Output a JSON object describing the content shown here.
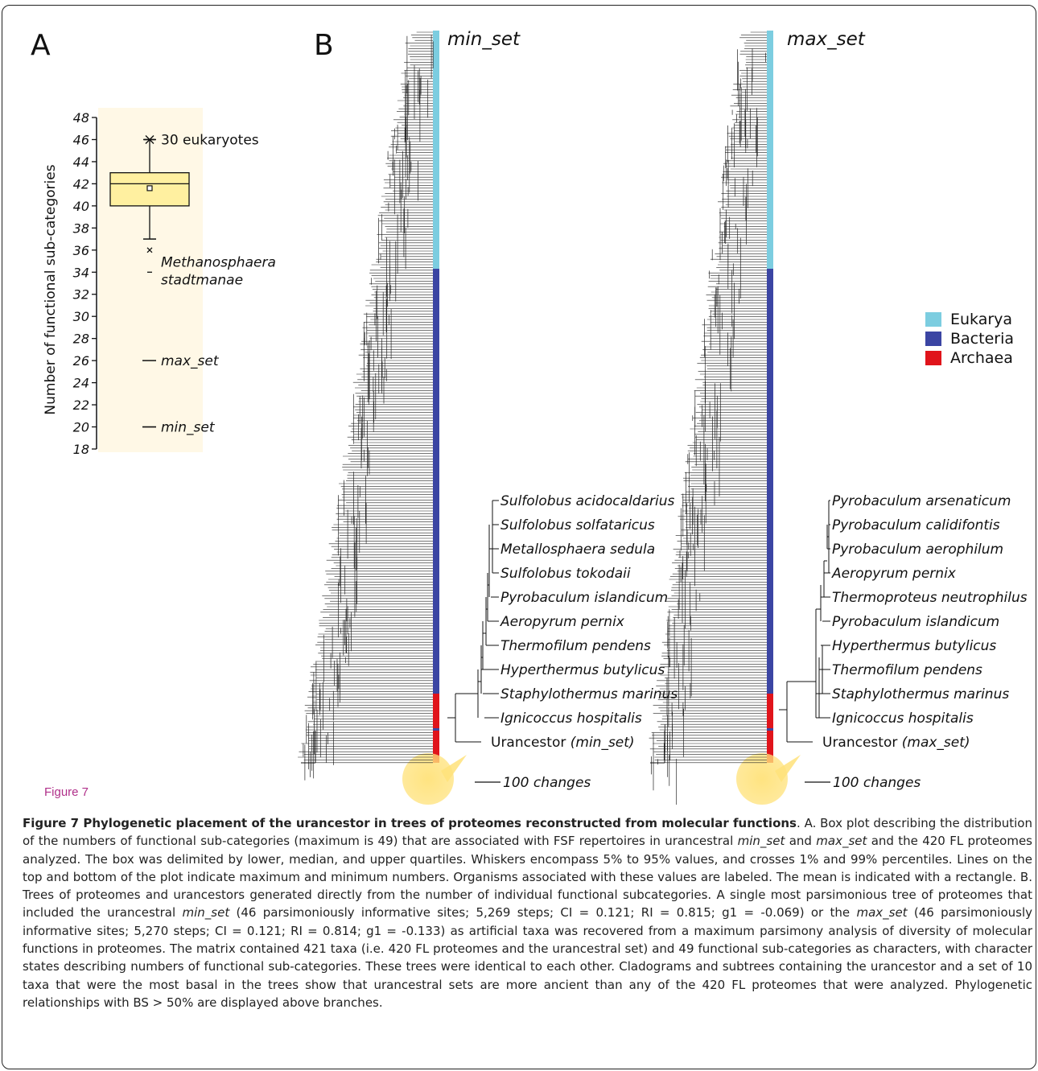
{
  "panel_a_letter": "A",
  "panel_b_letter": "B",
  "figure_label": "Figure 7",
  "chart_data": [
    {
      "type": "box",
      "ylabel": "Number of functional sub-categories",
      "ylim": [
        18,
        48
      ],
      "yticks": [
        18,
        20,
        22,
        24,
        26,
        28,
        30,
        32,
        34,
        36,
        38,
        40,
        42,
        44,
        46,
        48
      ],
      "box": {
        "q1": 40,
        "median": 42,
        "q3": 43,
        "mean": 41.6,
        "whisker_low": 37,
        "whisker_high": 46,
        "p1": 36,
        "p99": 46,
        "min": 34,
        "max": 46
      },
      "annotations": [
        {
          "value": 46,
          "label": "30 eukaryotes"
        },
        {
          "value": 34,
          "label": "Methanosphaera stadtmanae"
        },
        {
          "value": 26,
          "label": "max_set"
        },
        {
          "value": 20,
          "label": "min_set"
        }
      ]
    }
  ],
  "trees": {
    "left": {
      "title": "min_set",
      "taxa": [
        "Sulfolobus acidocaldarius",
        "Sulfolobus solfataricus",
        "Metallosphaera sedula",
        "Sulfolobus tokodaii",
        "Pyrobaculum islandicum",
        "Aeropyrum pernix",
        "Thermofilum pendens",
        "Hyperthermus butylicus",
        "Staphylothermus marinus",
        "Ignicoccus hospitalis"
      ],
      "ancestor": "Urancestor",
      "ancestor_set": "(min_set)",
      "scale": "100 changes"
    },
    "right": {
      "title": "max_set",
      "taxa": [
        "Pyrobaculum arsenaticum",
        "Pyrobaculum calidifontis",
        "Pyrobaculum aerophilum",
        "Aeropyrum pernix",
        "Thermoproteus neutrophilus",
        "Pyrobaculum islandicum",
        "Hyperthermus butylicus",
        "Thermofilum pendens",
        "Staphylothermus marinus",
        "Ignicoccus hospitalis"
      ],
      "ancestor": "Urancestor",
      "ancestor_set": "(max_set)",
      "scale": "100 changes"
    }
  },
  "legend": [
    {
      "label": "Eukarya",
      "color": "#7ccde0"
    },
    {
      "label": "Bacteria",
      "color": "#3b45a3"
    },
    {
      "label": "Archaea",
      "color": "#e0141b"
    }
  ],
  "colors": {
    "box_fill": "#fff0a0",
    "panel_bg": "#fff8e6",
    "highlight": "#ffe27a"
  },
  "caption": {
    "title": "Figure 7 Phylogenetic placement of the urancestor in trees of proteomes reconstructed from molecular functions",
    "p1": ". A. Box plot describing the distribution of the numbers of functional sub-categories (maximum is 49) that are associated with FSF repertoires in urancestral ",
    "i1": "min_set",
    "p2": " and ",
    "i2": "max_set",
    "p3": " and the 420 FL proteomes analyzed. The box was delimited by lower, median, and upper quartiles. Whiskers encompass 5% to 95% values, and crosses 1% and 99% percentiles. Lines on the top and bottom of the plot indicate maximum and minimum numbers. Organisms associated with these values are labeled. The mean is indicated with a rectangle. B. Trees of proteomes and urancestors generated directly from the number of individual functional subcategories. A single most parsimonious tree of proteomes that included the urancestral ",
    "i3": "min_set",
    "p4": " (46 parsimoniously informative sites; 5,269 steps; CI = 0.121; RI = 0.815; g1 = -0.069) or the ",
    "i4": "max_set",
    "p5": " (46 parsimoniously informative sites; 5,270 steps; CI = 0.121; RI = 0.814; g1 = -0.133) as artificial taxa was recovered from a maximum parsimony analysis of diversity of molecular functions in proteomes. The matrix contained 421 taxa (i.e. 420 FL proteomes and the urancestral set) and 49 functional sub-categories as characters, with character states describing numbers of functional sub-categories. These trees were identical to each other. Cladograms and subtrees containing the urancestor and a set of 10 taxa that were the most basal in the trees show that urancestral sets are more ancient than any of the 420 FL proteomes that were analyzed. Phylogenetic relationships with BS > 50% are displayed above branches."
  }
}
